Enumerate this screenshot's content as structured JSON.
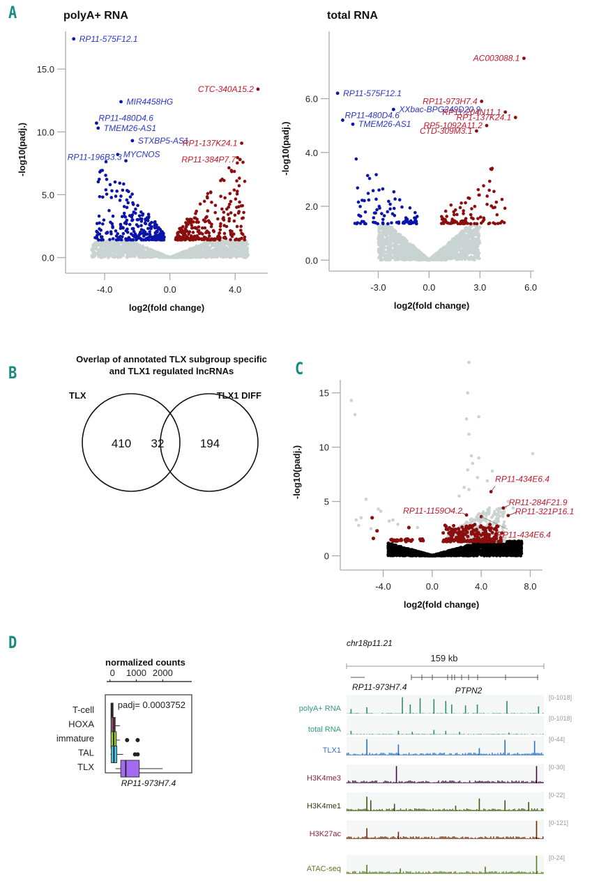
{
  "panels": {
    "A": "A",
    "B": "B",
    "C": "C",
    "D": "D"
  },
  "colors": {
    "up": "#8b0e0e",
    "down": "#0a14a8",
    "ns": "#c9d3d1",
    "black": "#000000",
    "label_up": "#c0182b",
    "label_down": "#2a35c8",
    "panel_letter": "#1a8a82"
  },
  "chart_data": [
    {
      "id": "A1",
      "type": "scatter",
      "title": "polyA+ RNA",
      "xlabel": "log2(fold change)",
      "ylabel": "-log10(padj.)",
      "xlim": [
        -6.4,
        6.0
      ],
      "ylim": [
        -0.8,
        18.0
      ],
      "xticks": [
        -4.0,
        0.0,
        4.0
      ],
      "xtick_labels": [
        "-4.0",
        "0.0",
        "4.0"
      ],
      "yticks": [
        0.0,
        5.0,
        10.0,
        15.0
      ],
      "ytick_labels": [
        "0.0",
        "5.0",
        "10.0",
        "15.0"
      ],
      "threshold": 1.35,
      "cloud_x": [
        -4.8,
        4.8
      ],
      "labeled_points": [
        {
          "label": "RP11-575F12.1",
          "x": -5.9,
          "y": 17.4,
          "dir": "down"
        },
        {
          "label": "MIR4458HG",
          "x": -3.0,
          "y": 12.4,
          "dir": "down"
        },
        {
          "label": "RP11-480D4.6",
          "x": -4.5,
          "y": 10.7,
          "dir": "down"
        },
        {
          "label": "TMEM26-AS1",
          "x": -4.4,
          "y": 10.3,
          "dir": "down"
        },
        {
          "label": "STXBP5-AS1",
          "x": -2.3,
          "y": 9.3,
          "dir": "down"
        },
        {
          "label": "MYCNOS",
          "x": -3.2,
          "y": 8.2,
          "dir": "down"
        },
        {
          "label": "RP11-196B3.3",
          "x": -2.7,
          "y": 7.7,
          "dir": "down"
        },
        {
          "label": "CTC-340A15.2",
          "x": 5.4,
          "y": 13.4,
          "dir": "up"
        },
        {
          "label": "RP1-137K24.1",
          "x": 4.4,
          "y": 9.1,
          "dir": "up"
        },
        {
          "label": "RP11-384P7.7",
          "x": 4.3,
          "y": 7.8,
          "dir": "up"
        }
      ]
    },
    {
      "id": "A2",
      "type": "scatter",
      "title": "total RNA",
      "xlabel": "log2(fold change)",
      "ylabel": "-log10(padj.)",
      "xlim": [
        -5.9,
        6.2
      ],
      "ylim": [
        -0.2,
        8.5
      ],
      "xticks": [
        -3.0,
        0.0,
        3.0,
        6.0
      ],
      "xtick_labels": [
        "-3.0",
        "0.0",
        "3.0",
        "6.0"
      ],
      "yticks": [
        0.0,
        2.0,
        4.0,
        6.0
      ],
      "ytick_labels": [
        "0.0",
        "2.0",
        "4.0",
        "6.0"
      ],
      "threshold": 1.3,
      "cloud_x": [
        -3.0,
        3.0
      ],
      "labeled_points": [
        {
          "label": "AC003088.1",
          "x": 5.6,
          "y": 7.5,
          "dir": "up"
        },
        {
          "label": "RP11-575F12.1",
          "x": -5.4,
          "y": 6.2,
          "dir": "down"
        },
        {
          "label": "XXbac-BPG249D20.9",
          "x": -2.1,
          "y": 5.6,
          "dir": "down"
        },
        {
          "label": "RP11-480D4.6",
          "x": -5.1,
          "y": 5.2,
          "dir": "down"
        },
        {
          "label": "TMEM26-AS1",
          "x": -4.5,
          "y": 5.05,
          "dir": "down"
        },
        {
          "label": "RP11-973H7.4",
          "x": 3.1,
          "y": 5.9,
          "dir": "up"
        },
        {
          "label": "RP11-204N11.1",
          "x": 4.5,
          "y": 5.5,
          "dir": "up"
        },
        {
          "label": "RP1-137K24.1",
          "x": 5.1,
          "y": 5.3,
          "dir": "up"
        },
        {
          "label": "RP5-1092A11.2",
          "x": 3.4,
          "y": 5.0,
          "dir": "up"
        },
        {
          "label": "CTD-309M3.1",
          "x": 2.8,
          "y": 4.8,
          "dir": "up"
        }
      ]
    },
    {
      "id": "B",
      "type": "venn",
      "title": "Overlap of annotated TLX subgroup specific and TLX1 regulated lncRNAs",
      "title_lines": [
        "Overlap of annotated TLX subgroup specific",
        "and TLX1 regulated lncRNAs"
      ],
      "sets": [
        {
          "name": "TLX",
          "only": 410
        },
        {
          "name": "TLX1 DIFF",
          "only": 194
        }
      ],
      "intersection": 32
    },
    {
      "id": "C",
      "type": "scatter",
      "title": "",
      "xlabel": "log2(fold change)",
      "ylabel": "-log10(padj.)",
      "xlim": [
        -7.5,
        9.0
      ],
      "ylim": [
        -0.8,
        16.2
      ],
      "xticks": [
        -4.0,
        0.0,
        4.0,
        8.0
      ],
      "xtick_labels": [
        "-4.0",
        "0.0",
        "4.0",
        "8.0"
      ],
      "yticks": [
        0,
        5,
        10,
        15
      ],
      "ytick_labels": [
        "0",
        "5",
        "10",
        "15"
      ],
      "gray_points": [
        [
          -6.6,
          14.3
        ],
        [
          -6.3,
          13.0
        ],
        [
          3.0,
          17.8
        ],
        [
          2.9,
          15.0
        ],
        [
          2.8,
          12.6
        ],
        [
          3.8,
          12.8
        ],
        [
          3.0,
          11.2
        ],
        [
          3.2,
          9.2
        ],
        [
          3.8,
          9.0
        ],
        [
          3.3,
          8.5
        ],
        [
          2.9,
          7.9
        ],
        [
          4.9,
          7.8
        ],
        [
          8.2,
          9.4
        ],
        [
          3.7,
          7.2
        ],
        [
          4.5,
          6.9
        ],
        [
          -5.4,
          5.2
        ],
        [
          -4.4,
          4.3
        ],
        [
          -6.2,
          3.3
        ],
        [
          -5.8,
          3.5
        ],
        [
          -4.2,
          4.1
        ],
        [
          -3.5,
          3.2
        ],
        [
          -3.2,
          3.3
        ],
        [
          -2.8,
          2.9
        ],
        [
          -1.2,
          2.6
        ],
        [
          1.5,
          4.2
        ],
        [
          2.2,
          5.5
        ],
        [
          3.0,
          6.1
        ],
        [
          6.2,
          5.0
        ],
        [
          6.6,
          4.4
        ],
        [
          7.1,
          4.8
        ],
        [
          2.6,
          6.3
        ],
        [
          5.8,
          4.0
        ],
        [
          -5.0,
          2.5
        ],
        [
          -6.0,
          2.8
        ]
      ],
      "labeled_points": [
        {
          "label": "RP11-434E6.4",
          "x": 4.8,
          "y": 5.9,
          "dir": "up",
          "anchor": "top"
        },
        {
          "label": "RP11-284F21.9",
          "x": 5.8,
          "y": 4.4,
          "dir": "up",
          "anchor": "mid"
        },
        {
          "label": "RP11-321P16.1",
          "x": 6.2,
          "y": 3.7,
          "dir": "up",
          "anchor": "right"
        },
        {
          "label": "RP11-1159O4.2",
          "x": 2.8,
          "y": 3.75,
          "dir": "up",
          "anchor": "left"
        },
        {
          "label": "RP11-434E6.4",
          "x": 4.0,
          "y": 3.6,
          "dir": "up",
          "anchor": "bottom"
        }
      ],
      "red_points": [
        [
          -4.9,
          3.5
        ],
        [
          -4.5,
          2.3
        ],
        [
          -4.8,
          1.6
        ],
        [
          -1.9,
          2.6
        ],
        [
          -3.3,
          1.5
        ],
        [
          -2.8,
          1.4
        ]
      ]
    },
    {
      "id": "D-box",
      "type": "box",
      "title": "normalized counts",
      "xlabel": "RP11-973H7.4",
      "xlim": [
        -150,
        3100
      ],
      "xticks": [
        0,
        1000,
        2000
      ],
      "xtick_labels": [
        "0",
        "1000",
        "2000"
      ],
      "annotation": "padj= 0.0003752",
      "groups": [
        {
          "name": "T-cell",
          "color": "#58d86a",
          "box_color": "#2b2b2b",
          "q1": 40,
          "median": 60,
          "q3": 80,
          "whisker_low": 30,
          "whisker_high": 90,
          "outliers": []
        },
        {
          "name": "HOXA",
          "color": "#d9534f",
          "box_color": "#8a4a63",
          "q1": 40,
          "median": 150,
          "q3": 200,
          "whisker_low": 30,
          "whisker_high": 380,
          "outliers": []
        },
        {
          "name": "immature",
          "color": "#a6c21b",
          "box_color": "#9acd32",
          "q1": 40,
          "median": 140,
          "q3": 240,
          "whisker_low": 20,
          "whisker_high": 380,
          "outliers": [
            650,
            1050
          ]
        },
        {
          "name": "TAL",
          "color": "#3ab4e6",
          "box_color": "#48c8e8",
          "q1": 50,
          "median": 150,
          "q3": 260,
          "whisker_low": 20,
          "whisker_high": 500,
          "outliers": [
            950,
            1050
          ]
        },
        {
          "name": "TLX",
          "color": "#7b55e0",
          "box_color": "#a46af0",
          "q1": 410,
          "median": 600,
          "q3": 1110,
          "whisker_low": 210,
          "whisker_high": 2000,
          "outliers": []
        }
      ]
    }
  ],
  "tracks": {
    "locus": "chr18p11.21",
    "scale": "159 kb",
    "genes": [
      {
        "name": "RP11-973H7.4"
      },
      {
        "name": "PTPN2"
      }
    ],
    "rows": [
      {
        "name": "polyA+ RNA",
        "range": "[0-1018]",
        "color": "#2f8a6e",
        "label_color": "#2f9a7e"
      },
      {
        "name": "total RNA",
        "range": "[0-1018]",
        "color": "#2f8a6e",
        "label_color": "#2f9a7e"
      },
      {
        "name": "TLX1",
        "range": "[0-44]",
        "color": "#2d70c8",
        "label_color": "#2d6fd0"
      },
      {
        "name": "H3K4me3",
        "range": "[0-30]",
        "color": "#3d0f3a",
        "label_color": "#8a2040"
      },
      {
        "name": "H3K4me1",
        "range": "[0-22]",
        "color": "#3f5a10",
        "label_color": "#2b3a10"
      },
      {
        "name": "H3K27ac",
        "range": "[0-121]",
        "color": "#6b2a05",
        "label_color": "#8a2040"
      },
      {
        "name": "ATAC-seq",
        "range": "[0-24]",
        "color": "#5b7a22",
        "label_color": "#5b7a22"
      }
    ]
  }
}
